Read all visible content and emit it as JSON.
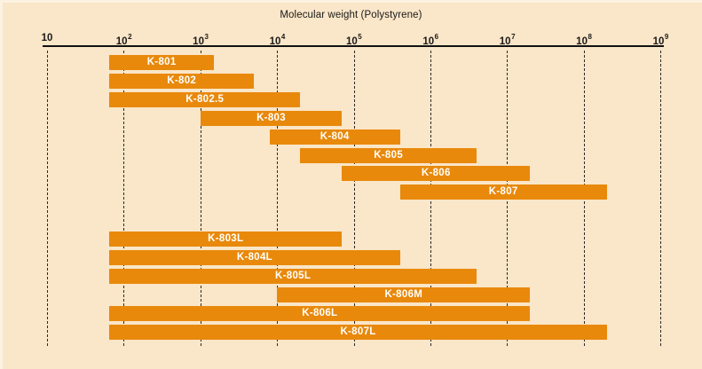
{
  "title": "Molecular weight (Polystyrene)",
  "chart_data": {
    "type": "bar",
    "subtype": "horizontal-range-bars",
    "title": "Molecular weight (Polystyrene)",
    "x_scale": "log10",
    "xlim": [
      10,
      1000000000
    ],
    "x_tick_labels": [
      "10",
      "10^2",
      "10^3",
      "10^4",
      "10^5",
      "10^6",
      "10^7",
      "10^8",
      "10^9"
    ],
    "grid": "vertical dashed gridlines at each decade",
    "legend": "none",
    "series": [
      {
        "name": "K-801",
        "group": 1,
        "mw_min": 65,
        "mw_max": 1500
      },
      {
        "name": "K-802",
        "group": 1,
        "mw_min": 65,
        "mw_max": 5000
      },
      {
        "name": "K-802.5",
        "group": 1,
        "mw_min": 65,
        "mw_max": 20000
      },
      {
        "name": "K-803",
        "group": 1,
        "mw_min": 1000,
        "mw_max": 70000
      },
      {
        "name": "K-804",
        "group": 1,
        "mw_min": 8000,
        "mw_max": 400000
      },
      {
        "name": "K-805",
        "group": 1,
        "mw_min": 20000,
        "mw_max": 4000000
      },
      {
        "name": "K-806",
        "group": 1,
        "mw_min": 70000,
        "mw_max": 20000000
      },
      {
        "name": "K-807",
        "group": 1,
        "mw_min": 400000,
        "mw_max": 200000000
      },
      {
        "name": "K-803L",
        "group": 2,
        "mw_min": 65,
        "mw_max": 70000
      },
      {
        "name": "K-804L",
        "group": 2,
        "mw_min": 65,
        "mw_max": 400000
      },
      {
        "name": "K-805L",
        "group": 2,
        "mw_min": 65,
        "mw_max": 4000000
      },
      {
        "name": "K-806M",
        "group": 2,
        "mw_min": 10000,
        "mw_max": 20000000
      },
      {
        "name": "K-806L",
        "group": 2,
        "mw_min": 65,
        "mw_max": 20000000
      },
      {
        "name": "K-807L",
        "group": 2,
        "mw_min": 65,
        "mw_max": 200000000
      }
    ]
  },
  "colors": {
    "background": "#FAE6C8",
    "edge_highlight": "#FCF2E2",
    "bar": "#E8890C",
    "bar_label": "#FFFFFF",
    "axis_line": "#111111",
    "axis_text": "#1A1A1A",
    "gridline": "#2A2A2A"
  }
}
